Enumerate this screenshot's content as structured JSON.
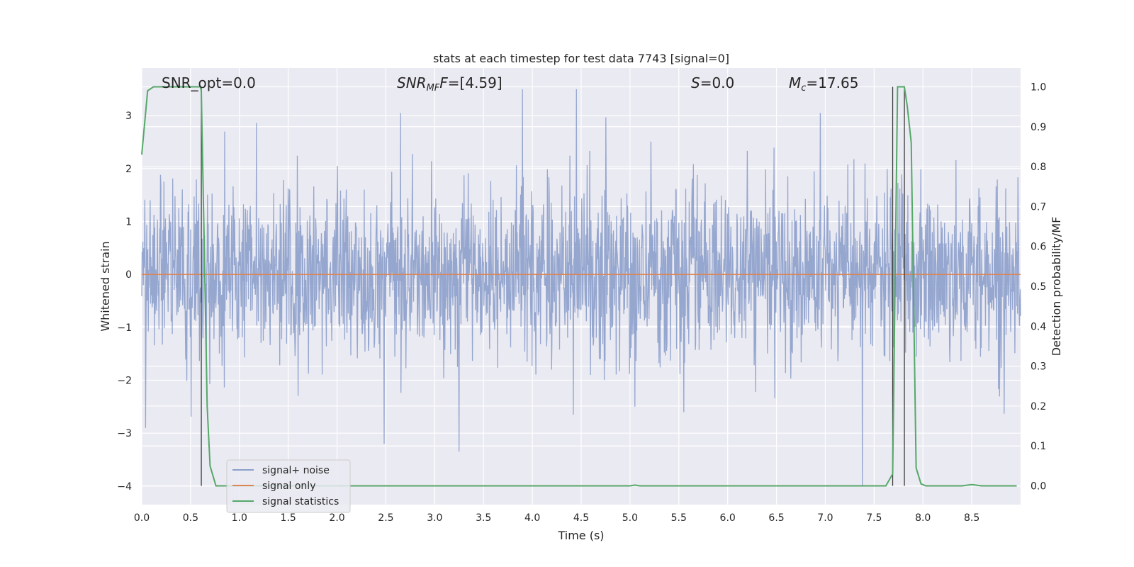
{
  "chart_data": {
    "type": "line",
    "title": "stats at each timestep for test data 7743 [signal=0]",
    "xlabel": "Time (s)",
    "ylabel_left": "Whitened strain",
    "ylabel_right": "Detection probability/MF",
    "xlim": [
      0,
      9.0
    ],
    "ylim_left": [
      -4.35,
      3.9
    ],
    "ylim_right": [
      -0.047,
      1.047
    ],
    "x_ticks": [
      "0.0",
      "0.5",
      "1.0",
      "1.5",
      "2.0",
      "2.5",
      "3.0",
      "3.5",
      "4.0",
      "4.5",
      "5.0",
      "5.5",
      "6.0",
      "6.5",
      "7.0",
      "7.5",
      "8.0",
      "8.5"
    ],
    "y_ticks_left": [
      "−4",
      "−3",
      "−2",
      "−1",
      "0",
      "1",
      "2",
      "3"
    ],
    "y_ticks_right": [
      "0.0",
      "0.1",
      "0.2",
      "0.3",
      "0.4",
      "0.5",
      "0.6",
      "0.7",
      "0.8",
      "0.9",
      "1.0"
    ],
    "grid": true,
    "legend_position": "bottom-left",
    "annotations": {
      "snr_opt": "SNR_opt=0.0",
      "snr_mf_main": "SNR",
      "snr_mf_sub": "MF",
      "snr_mf_value": "=[4.59]",
      "s_label": "S",
      "s_value": "=0.0",
      "mc_main": "M",
      "mc_sub": "c",
      "mc_value": "=17.65"
    },
    "vlines_x": [
      0.61,
      7.69,
      7.81
    ],
    "series": [
      {
        "name": "signal+ noise",
        "color": "#8c9fcb",
        "axis": "left",
        "description_values": "noise trace, roughly gaussian amplitude ~1",
        "x_range": [
          0.0,
          9.0
        ],
        "n_points": 2300,
        "std": 0.78,
        "notable_points": [
          [
            0.04,
            -2.9
          ],
          [
            2.48,
            -3.2
          ],
          [
            3.25,
            -3.35
          ],
          [
            3.9,
            3.5
          ],
          [
            4.45,
            3.5
          ],
          [
            2.65,
            3.05
          ],
          [
            6.95,
            3.05
          ],
          [
            7.38,
            -4.0
          ],
          [
            5.39,
            0.55
          ],
          [
            0.85,
            2.7
          ],
          [
            5.05,
            -2.5
          ],
          [
            4.42,
            -2.65
          ]
        ]
      },
      {
        "name": "signal only",
        "color": "#dd8452",
        "axis": "left",
        "x": [
          0.0,
          9.0
        ],
        "y": [
          0.0,
          0.0
        ]
      },
      {
        "name": "signal statistics",
        "color": "#55a868",
        "axis": "right",
        "x": [
          0.0,
          0.06,
          0.12,
          0.2,
          0.3,
          0.4,
          0.5,
          0.6,
          0.61,
          0.64,
          0.67,
          0.7,
          0.76,
          0.9,
          1.5,
          2.5,
          3.5,
          4.5,
          5.0,
          5.05,
          5.1,
          6.0,
          7.0,
          7.5,
          7.62,
          7.69,
          7.74,
          7.78,
          7.81,
          7.84,
          7.88,
          7.93,
          7.98,
          8.03,
          8.1,
          8.2,
          8.4,
          8.5,
          8.6,
          8.8,
          8.96
        ],
        "y": [
          0.83,
          0.99,
          1.0,
          1.0,
          1.0,
          1.0,
          1.0,
          1.0,
          0.99,
          0.6,
          0.2,
          0.05,
          0.0,
          0.0,
          0.0,
          0.0,
          0.0,
          0.0,
          0.0,
          0.002,
          0.0,
          0.0,
          0.0,
          0.0,
          0.0,
          0.03,
          1.0,
          1.0,
          1.0,
          0.95,
          0.86,
          0.045,
          0.005,
          0.0,
          0.0,
          0.0,
          0.0,
          0.003,
          0.0,
          0.0,
          0.0
        ]
      }
    ]
  }
}
